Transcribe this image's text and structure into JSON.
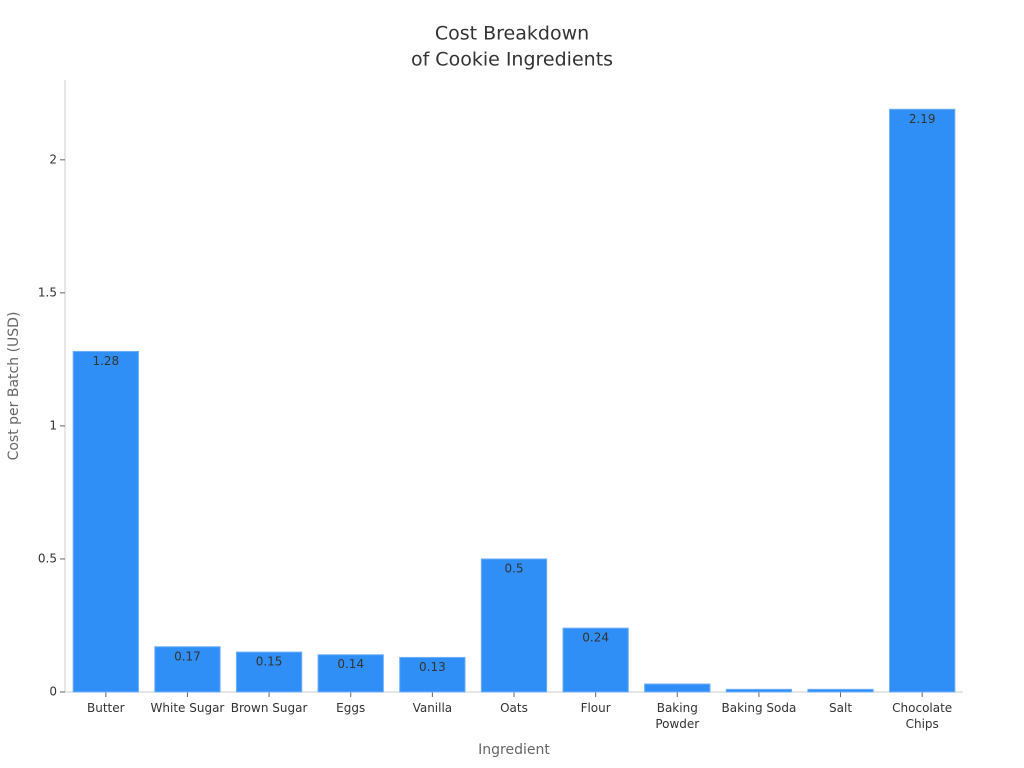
{
  "chart_data": {
    "type": "bar",
    "title": [
      "Cost Breakdown",
      "of Cookie Ingredients"
    ],
    "x_label": "Ingredient",
    "y_label": "Cost per Batch (USD)",
    "categories": [
      "Butter",
      "White Sugar",
      "Brown Sugar",
      "Eggs",
      "Vanilla",
      "Oats",
      "Flour",
      "Baking Powder",
      "Baking Soda",
      "Salt",
      "Chocolate Chips"
    ],
    "values": [
      1.28,
      0.17,
      0.15,
      0.14,
      0.13,
      0.5,
      0.24,
      0.03,
      0.01,
      0.01,
      2.19
    ],
    "color": "#2f8ff7",
    "ylim": [
      0,
      2.3
    ],
    "yticks": [
      0,
      0.5,
      1,
      1.5,
      2
    ]
  }
}
